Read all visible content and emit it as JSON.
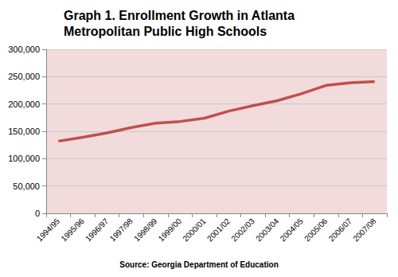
{
  "chart_data": {
    "type": "line",
    "title": "Graph 1. Enrollment Growth in Atlanta Metropolitan Public High Schools",
    "source": "Source: Georgia Department of Education",
    "categories": [
      "1994/95",
      "1995/96",
      "1996/97",
      "1997/98",
      "1998/99",
      "1999/00",
      "2000/01",
      "2001/02",
      "2002/03",
      "2003/04",
      "2004/05",
      "2005/06",
      "2006/07",
      "2007/08"
    ],
    "values": [
      132000,
      139000,
      147000,
      157000,
      165000,
      168000,
      174000,
      187000,
      197000,
      206000,
      219000,
      234000,
      239000,
      241000
    ],
    "color": "#c0504d",
    "ylim": [
      0,
      300000
    ],
    "yticks": [
      0,
      {
        "value": 50000,
        "label": "50,000"
      },
      {
        "value": 100000,
        "label": "100,000"
      },
      {
        "value": 150000,
        "label": "150,000"
      },
      {
        "value": 200000,
        "label": "200,000"
      },
      {
        "value": 250000,
        "label": "250,000"
      },
      {
        "value": 300000,
        "label": "300,000"
      }
    ],
    "grid": true
  }
}
